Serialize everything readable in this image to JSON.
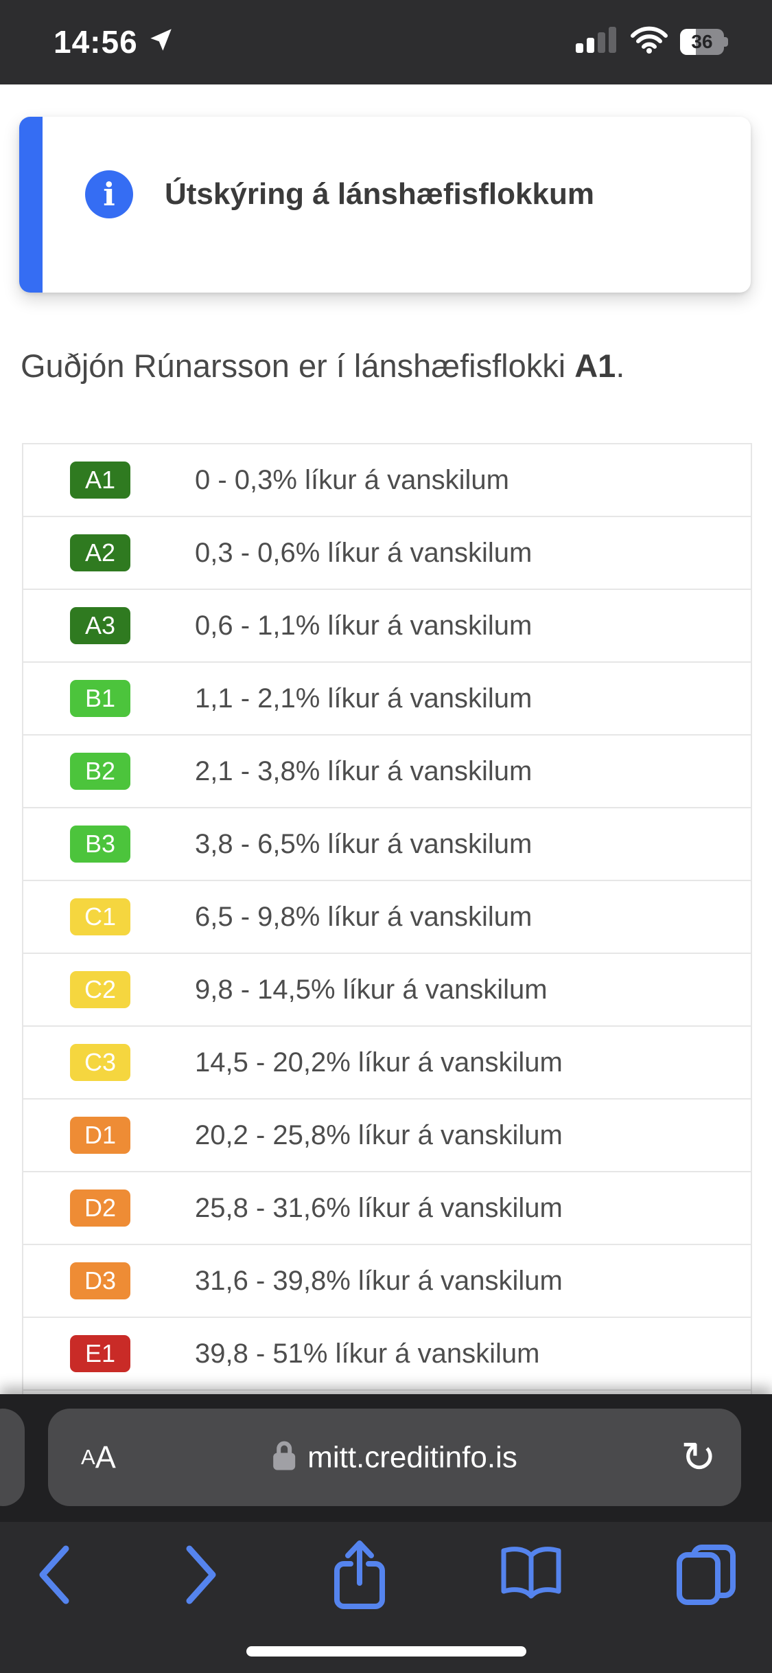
{
  "status_bar": {
    "time": "14:56",
    "battery_percent": "36",
    "icons": {
      "location": "location-arrow-icon",
      "signal": "cellular-signal-icon-2of4",
      "wifi": "wifi-icon",
      "battery": "battery-icon"
    }
  },
  "info_card": {
    "icon": "info-circle-icon",
    "info_glyph": "i",
    "title": "Útskýring á lánshæfisflokkum",
    "accent_color": "#356df3"
  },
  "heading": {
    "prefix": "Guðjón Rúnarsson er í lánshæfisflokki ",
    "grade": "A1",
    "suffix": "."
  },
  "rating_table": {
    "rows": [
      {
        "grade": "A1",
        "color": "#2f7a20",
        "text": "0 - 0,3% líkur á vanskilum"
      },
      {
        "grade": "A2",
        "color": "#2f7a20",
        "text": "0,3 - 0,6% líkur á vanskilum"
      },
      {
        "grade": "A3",
        "color": "#2f7a20",
        "text": "0,6 - 1,1% líkur á vanskilum"
      },
      {
        "grade": "B1",
        "color": "#4cc43c",
        "text": "1,1 - 2,1% líkur á vanskilum"
      },
      {
        "grade": "B2",
        "color": "#4cc43c",
        "text": "2,1 - 3,8% líkur á vanskilum"
      },
      {
        "grade": "B3",
        "color": "#4cc43c",
        "text": "3,8 - 6,5% líkur á vanskilum"
      },
      {
        "grade": "C1",
        "color": "#f5d63f",
        "text": "6,5 - 9,8% líkur á vanskilum"
      },
      {
        "grade": "C2",
        "color": "#f5d63f",
        "text": "9,8 - 14,5% líkur á vanskilum"
      },
      {
        "grade": "C3",
        "color": "#f5d63f",
        "text": "14,5 - 20,2% líkur á vanskilum"
      },
      {
        "grade": "D1",
        "color": "#ee8c35",
        "text": "20,2 - 25,8% líkur á vanskilum"
      },
      {
        "grade": "D2",
        "color": "#ee8c35",
        "text": "25,8 - 31,6% líkur á vanskilum"
      },
      {
        "grade": "D3",
        "color": "#ee8c35",
        "text": "31,6 - 39,8% líkur á vanskilum"
      },
      {
        "grade": "E1",
        "color": "#c92b27",
        "text": "39,8 - 51% líkur á vanskilum"
      }
    ]
  },
  "url_bar": {
    "reader_small": "A",
    "reader_large": "A",
    "lock_icon": "lock-icon",
    "url": "mitt.creditinfo.is",
    "refresh_glyph": "↻"
  },
  "toolbar": {
    "icons": [
      "back",
      "forward",
      "share",
      "bookmarks",
      "tabs"
    ],
    "icon_color": "#5584ee"
  }
}
